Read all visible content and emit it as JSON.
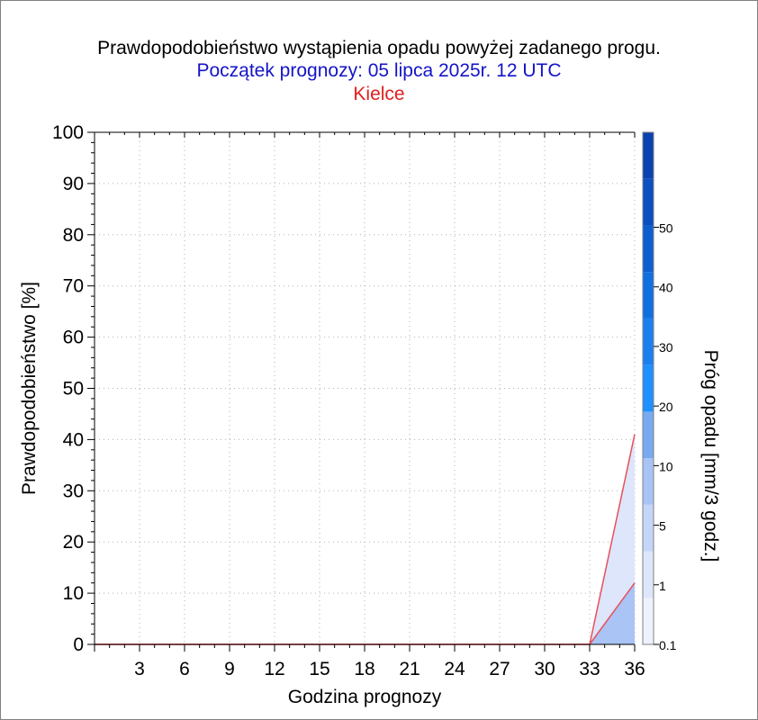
{
  "title": "Prawdopodobieństwo wystąpienia opadu powyżej zadanego progu.",
  "subtitle": "Początek prognozy: 05 lipca 2025r. 12 UTC",
  "location": "Kielce",
  "colors": {
    "title": "#000000",
    "subtitle": "#1414c8",
    "location": "#e01e1e",
    "series_line": "#e8505a"
  },
  "chart_data": {
    "type": "area",
    "title": "Prawdopodobieństwo wystąpienia opadu powyżej zadanego progu.",
    "subtitle": "Początek prognozy: 05 lipca 2025r. 12 UTC",
    "xlabel": "Godzina prognozy",
    "ylabel": "Prawdopodobieństwo [%]",
    "xlim": [
      0,
      36
    ],
    "ylim": [
      0,
      100
    ],
    "x_ticks": [
      3,
      6,
      9,
      12,
      15,
      18,
      21,
      24,
      27,
      30,
      33,
      36
    ],
    "y_ticks": [
      0,
      10,
      20,
      30,
      40,
      50,
      60,
      70,
      80,
      90,
      100
    ],
    "grid": true,
    "x": [
      0,
      33,
      36
    ],
    "series": [
      {
        "name": "0.1",
        "color": "#dde6fb",
        "values": [
          0,
          0,
          41
        ]
      },
      {
        "name": "1",
        "color": "#a9c4f5",
        "values": [
          0,
          0,
          12
        ]
      }
    ],
    "colorbar": {
      "label": "Próg opadu [mm/3 godz.]",
      "tick_labels": [
        "0.1",
        "1",
        "5",
        "10",
        "20",
        "30",
        "40",
        "50"
      ],
      "colors": [
        "#eef2fd",
        "#dde6fb",
        "#c4d6f8",
        "#a8c4f5",
        "#78aaf0",
        "#1e90ff",
        "#1a80f0",
        "#1070e0",
        "#0d5fd0",
        "#0b50c0",
        "#0a42b0"
      ]
    }
  }
}
